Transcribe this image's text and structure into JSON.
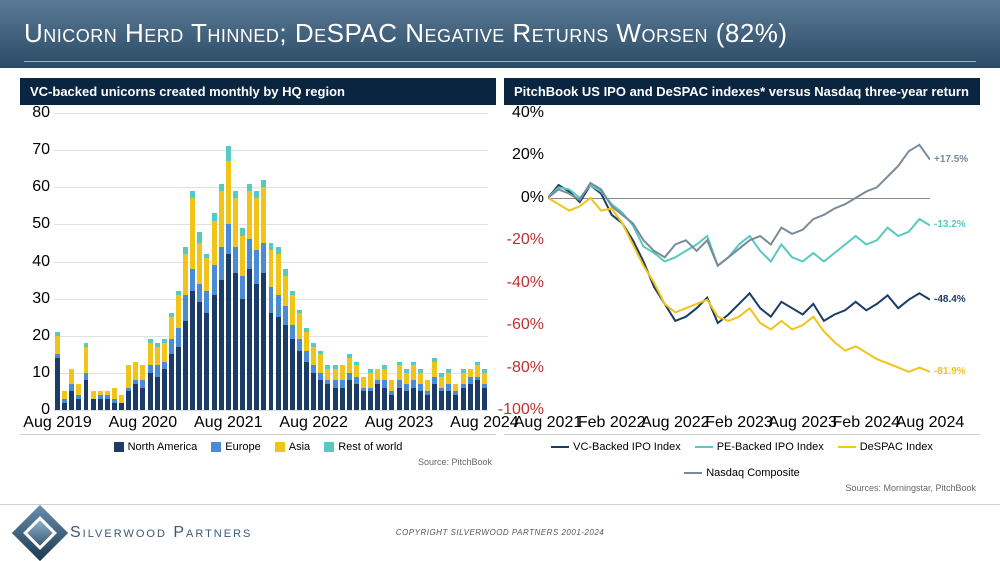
{
  "header": {
    "title": "Unicorn Herd Thinned; DeSPAC Negative Returns Worsen (82%)"
  },
  "footer": {
    "company": "Silverwood Partners",
    "copyright": "COPYRIGHT SILVERWOOD PARTNERS 2001-2024"
  },
  "left_chart": {
    "type": "stacked-bar",
    "title": "VC-backed unicorns created monthly by HQ region",
    "y_axis": {
      "min": 0,
      "max": 80,
      "step": 10
    },
    "x_ticks": [
      "Aug 2019",
      "Aug 2020",
      "Aug 2021",
      "Aug 2022",
      "Aug 2023",
      "Aug 2024"
    ],
    "series_order": [
      "na",
      "eu",
      "asia",
      "row"
    ],
    "series_colors": {
      "na": "#1a3c66",
      "eu": "#4a8bd6",
      "asia": "#f0c419",
      "row": "#56c9c1"
    },
    "series_labels": {
      "na": "North America",
      "eu": "Europe",
      "asia": "Asia",
      "row": "Rest of world"
    },
    "data": [
      {
        "na": 14,
        "eu": 1,
        "asia": 5,
        "row": 1
      },
      {
        "na": 2,
        "eu": 1,
        "asia": 2,
        "row": 0
      },
      {
        "na": 5,
        "eu": 2,
        "asia": 4,
        "row": 0
      },
      {
        "na": 3,
        "eu": 1,
        "asia": 3,
        "row": 0
      },
      {
        "na": 8,
        "eu": 2,
        "asia": 7,
        "row": 1
      },
      {
        "na": 3,
        "eu": 0,
        "asia": 2,
        "row": 0
      },
      {
        "na": 3,
        "eu": 1,
        "asia": 1,
        "row": 0
      },
      {
        "na": 3,
        "eu": 1,
        "asia": 1,
        "row": 0
      },
      {
        "na": 2,
        "eu": 1,
        "asia": 3,
        "row": 0
      },
      {
        "na": 2,
        "eu": 0,
        "asia": 2,
        "row": 0
      },
      {
        "na": 5,
        "eu": 1,
        "asia": 6,
        "row": 0
      },
      {
        "na": 7,
        "eu": 1,
        "asia": 5,
        "row": 0
      },
      {
        "na": 6,
        "eu": 2,
        "asia": 4,
        "row": 0
      },
      {
        "na": 10,
        "eu": 2,
        "asia": 6,
        "row": 1
      },
      {
        "na": 9,
        "eu": 3,
        "asia": 5,
        "row": 1
      },
      {
        "na": 11,
        "eu": 2,
        "asia": 5,
        "row": 1
      },
      {
        "na": 15,
        "eu": 4,
        "asia": 6,
        "row": 1
      },
      {
        "na": 17,
        "eu": 5,
        "asia": 9,
        "row": 1
      },
      {
        "na": 24,
        "eu": 7,
        "asia": 11,
        "row": 2
      },
      {
        "na": 32,
        "eu": 6,
        "asia": 19,
        "row": 2
      },
      {
        "na": 29,
        "eu": 5,
        "asia": 11,
        "row": 3
      },
      {
        "na": 26,
        "eu": 6,
        "asia": 9,
        "row": 1
      },
      {
        "na": 31,
        "eu": 8,
        "asia": 12,
        "row": 2
      },
      {
        "na": 35,
        "eu": 9,
        "asia": 15,
        "row": 2
      },
      {
        "na": 42,
        "eu": 8,
        "asia": 17,
        "row": 4
      },
      {
        "na": 37,
        "eu": 7,
        "asia": 13,
        "row": 2
      },
      {
        "na": 30,
        "eu": 6,
        "asia": 11,
        "row": 2
      },
      {
        "na": 38,
        "eu": 8,
        "asia": 13,
        "row": 2
      },
      {
        "na": 34,
        "eu": 9,
        "asia": 14,
        "row": 2
      },
      {
        "na": 37,
        "eu": 8,
        "asia": 15,
        "row": 2
      },
      {
        "na": 26,
        "eu": 7,
        "asia": 10,
        "row": 2
      },
      {
        "na": 25,
        "eu": 6,
        "asia": 11,
        "row": 2
      },
      {
        "na": 23,
        "eu": 5,
        "asia": 8,
        "row": 2
      },
      {
        "na": 19,
        "eu": 4,
        "asia": 8,
        "row": 1
      },
      {
        "na": 16,
        "eu": 3,
        "asia": 7,
        "row": 1
      },
      {
        "na": 13,
        "eu": 3,
        "asia": 5,
        "row": 1
      },
      {
        "na": 10,
        "eu": 2,
        "asia": 5,
        "row": 1
      },
      {
        "na": 8,
        "eu": 2,
        "asia": 5,
        "row": 1
      },
      {
        "na": 7,
        "eu": 1,
        "asia": 3,
        "row": 1
      },
      {
        "na": 6,
        "eu": 2,
        "asia": 3,
        "row": 1
      },
      {
        "na": 6,
        "eu": 2,
        "asia": 4,
        "row": 0
      },
      {
        "na": 8,
        "eu": 2,
        "asia": 4,
        "row": 1
      },
      {
        "na": 7,
        "eu": 2,
        "asia": 3,
        "row": 1
      },
      {
        "na": 5,
        "eu": 1,
        "asia": 3,
        "row": 0
      },
      {
        "na": 5,
        "eu": 1,
        "asia": 4,
        "row": 1
      },
      {
        "na": 7,
        "eu": 1,
        "asia": 3,
        "row": 0
      },
      {
        "na": 6,
        "eu": 2,
        "asia": 3,
        "row": 1
      },
      {
        "na": 4,
        "eu": 1,
        "asia": 3,
        "row": 0
      },
      {
        "na": 6,
        "eu": 2,
        "asia": 4,
        "row": 1
      },
      {
        "na": 5,
        "eu": 2,
        "asia": 3,
        "row": 1
      },
      {
        "na": 6,
        "eu": 2,
        "asia": 4,
        "row": 1
      },
      {
        "na": 5,
        "eu": 2,
        "asia": 3,
        "row": 1
      },
      {
        "na": 4,
        "eu": 1,
        "asia": 3,
        "row": 0
      },
      {
        "na": 7,
        "eu": 2,
        "asia": 4,
        "row": 1
      },
      {
        "na": 5,
        "eu": 1,
        "asia": 3,
        "row": 1
      },
      {
        "na": 5,
        "eu": 2,
        "asia": 3,
        "row": 1
      },
      {
        "na": 4,
        "eu": 1,
        "asia": 2,
        "row": 0
      },
      {
        "na": 6,
        "eu": 1,
        "asia": 3,
        "row": 1
      },
      {
        "na": 7,
        "eu": 2,
        "asia": 2,
        "row": 0
      },
      {
        "na": 8,
        "eu": 1,
        "asia": 3,
        "row": 1
      },
      {
        "na": 6,
        "eu": 1,
        "asia": 3,
        "row": 1
      }
    ],
    "source": "Source: PitchBook"
  },
  "right_chart": {
    "type": "line",
    "title": "PitchBook US IPO and DeSPAC indexes* versus Nasdaq three-year return",
    "y_axis": {
      "min": -100,
      "max": 40,
      "step": 20,
      "format": "percent"
    },
    "x_ticks": [
      "Aug 2021",
      "Feb 2022",
      "Aug 2022",
      "Feb 2023",
      "Aug 2023",
      "Feb 2024",
      "Aug 2024"
    ],
    "series": [
      {
        "key": "vc",
        "label": "VC-Backed IPO Index",
        "color": "#1a3c66",
        "end_label": "-48.4%",
        "points": [
          0,
          6,
          3,
          -2,
          6,
          2,
          -8,
          -12,
          -20,
          -30,
          -42,
          -50,
          -58,
          -56,
          -52,
          -47,
          -59,
          -55,
          -50,
          -45,
          -52,
          -56,
          -49,
          -52,
          -55,
          -50,
          -58,
          -55,
          -53,
          -49,
          -53,
          -50,
          -46,
          -52,
          -48,
          -45,
          -48
        ]
      },
      {
        "key": "pe",
        "label": "PE-Backed IPO Index",
        "color": "#56c9c1",
        "end_label": "-13.2%",
        "points": [
          0,
          5,
          4,
          0,
          6,
          3,
          -3,
          -7,
          -13,
          -23,
          -26,
          -30,
          -28,
          -25,
          -22,
          -18,
          -32,
          -28,
          -22,
          -18,
          -25,
          -30,
          -22,
          -28,
          -30,
          -26,
          -30,
          -26,
          -22,
          -18,
          -22,
          -20,
          -14,
          -18,
          -16,
          -10,
          -13
        ]
      },
      {
        "key": "despac",
        "label": "DeSPAC Index",
        "color": "#f0c419",
        "end_label": "-81.9%",
        "points": [
          0,
          -3,
          -6,
          -4,
          0,
          -6,
          -5,
          -12,
          -22,
          -32,
          -40,
          -50,
          -54,
          -52,
          -50,
          -48,
          -56,
          -58,
          -56,
          -52,
          -59,
          -62,
          -58,
          -62,
          -60,
          -56,
          -63,
          -68,
          -72,
          -70,
          -73,
          -76,
          -78,
          -80,
          -82,
          -80,
          -82
        ]
      },
      {
        "key": "nasdaq",
        "label": "Nasdaq Composite",
        "color": "#7a8a99",
        "end_label": "+17.5%",
        "points": [
          0,
          4,
          2,
          -1,
          7,
          4,
          -4,
          -8,
          -12,
          -20,
          -25,
          -28,
          -22,
          -20,
          -25,
          -20,
          -32,
          -28,
          -24,
          -20,
          -18,
          -22,
          -14,
          -17,
          -15,
          -10,
          -8,
          -5,
          -3,
          0,
          3,
          5,
          10,
          15,
          22,
          25,
          18
        ]
      }
    ],
    "source": "Sources: Morningstar, PitchBook"
  }
}
